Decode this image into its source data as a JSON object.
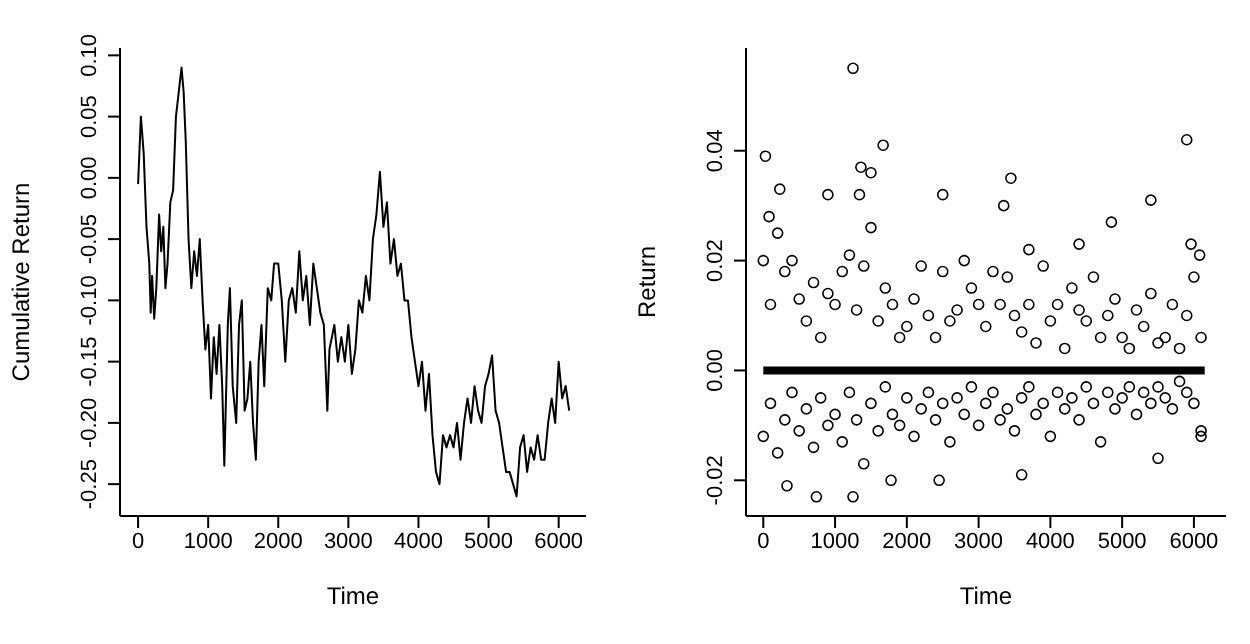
{
  "chart_data": [
    {
      "type": "line",
      "xlabel": "Time",
      "ylabel": "Cumulative Return",
      "xlim": [
        -258,
        6390
      ],
      "ylim": [
        -0.276,
        0.106
      ],
      "xticks": [
        0,
        1000,
        2000,
        3000,
        4000,
        5000,
        6000
      ],
      "yticks": [
        {
          "value": -0.25,
          "label": "-0.25"
        },
        {
          "value": -0.2,
          "label": "-0.20"
        },
        {
          "value": -0.15,
          "label": "-0.15"
        },
        {
          "value": -0.1,
          "label": "-0.10"
        },
        {
          "value": -0.05,
          "label": "-0.05"
        },
        {
          "value": 0,
          "label": "0.00"
        },
        {
          "value": 0.05,
          "label": "0.05"
        },
        {
          "value": 0.1,
          "label": "0.10"
        }
      ],
      "grid": false,
      "legend": false,
      "marker": "none",
      "series": [
        {
          "color": "#000000",
          "x": [
            0,
            40,
            80,
            120,
            160,
            180,
            200,
            230,
            260,
            300,
            330,
            360,
            390,
            420,
            460,
            500,
            540,
            580,
            620,
            650,
            680,
            720,
            760,
            800,
            840,
            880,
            920,
            960,
            1000,
            1040,
            1080,
            1120,
            1160,
            1200,
            1230,
            1280,
            1310,
            1350,
            1400,
            1440,
            1480,
            1520,
            1560,
            1600,
            1640,
            1680,
            1720,
            1760,
            1800,
            1850,
            1900,
            1940,
            2000,
            2050,
            2100,
            2150,
            2200,
            2250,
            2300,
            2350,
            2400,
            2450,
            2500,
            2550,
            2600,
            2650,
            2700,
            2730,
            2800,
            2850,
            2900,
            2950,
            3000,
            3050,
            3100,
            3150,
            3200,
            3250,
            3300,
            3350,
            3400,
            3450,
            3500,
            3550,
            3600,
            3650,
            3700,
            3750,
            3800,
            3850,
            3900,
            3950,
            4000,
            4050,
            4100,
            4150,
            4200,
            4250,
            4300,
            4350,
            4400,
            4450,
            4500,
            4550,
            4600,
            4650,
            4700,
            4750,
            4800,
            4850,
            4900,
            4950,
            5000,
            5050,
            5100,
            5150,
            5200,
            5250,
            5300,
            5350,
            5400,
            5450,
            5500,
            5550,
            5600,
            5650,
            5700,
            5750,
            5800,
            5850,
            5900,
            5950,
            6000,
            6050,
            6100,
            6150
          ],
          "values": [
            -0.005,
            0.05,
            0.02,
            -0.04,
            -0.07,
            -0.11,
            -0.08,
            -0.115,
            -0.09,
            -0.03,
            -0.06,
            -0.04,
            -0.09,
            -0.07,
            -0.02,
            -0.01,
            0.05,
            0.07,
            0.09,
            0.07,
            0.03,
            -0.05,
            -0.09,
            -0.06,
            -0.08,
            -0.05,
            -0.1,
            -0.14,
            -0.12,
            -0.18,
            -0.13,
            -0.16,
            -0.12,
            -0.17,
            -0.235,
            -0.12,
            -0.09,
            -0.17,
            -0.2,
            -0.12,
            -0.1,
            -0.19,
            -0.18,
            -0.15,
            -0.2,
            -0.23,
            -0.15,
            -0.12,
            -0.17,
            -0.09,
            -0.1,
            -0.07,
            -0.07,
            -0.1,
            -0.15,
            -0.1,
            -0.09,
            -0.11,
            -0.06,
            -0.1,
            -0.08,
            -0.12,
            -0.07,
            -0.09,
            -0.11,
            -0.12,
            -0.19,
            -0.14,
            -0.12,
            -0.15,
            -0.13,
            -0.15,
            -0.12,
            -0.16,
            -0.14,
            -0.1,
            -0.11,
            -0.08,
            -0.1,
            -0.05,
            -0.03,
            0.005,
            -0.04,
            -0.02,
            -0.07,
            -0.05,
            -0.08,
            -0.07,
            -0.1,
            -0.1,
            -0.13,
            -0.15,
            -0.17,
            -0.15,
            -0.19,
            -0.16,
            -0.21,
            -0.24,
            -0.25,
            -0.21,
            -0.22,
            -0.21,
            -0.22,
            -0.2,
            -0.23,
            -0.2,
            -0.18,
            -0.2,
            -0.17,
            -0.19,
            -0.2,
            -0.17,
            -0.16,
            -0.145,
            -0.19,
            -0.2,
            -0.22,
            -0.24,
            -0.24,
            -0.25,
            -0.26,
            -0.22,
            -0.21,
            -0.24,
            -0.22,
            -0.23,
            -0.21,
            -0.23,
            -0.23,
            -0.2,
            -0.18,
            -0.2,
            -0.15,
            -0.18,
            -0.17,
            -0.19
          ]
        }
      ]
    },
    {
      "type": "scatter",
      "xlabel": "Time",
      "ylabel": "Return",
      "xlim": [
        -241,
        6447
      ],
      "ylim": [
        -0.0265,
        0.0587
      ],
      "xticks": [
        0,
        1000,
        2000,
        3000,
        4000,
        5000,
        6000
      ],
      "yticks": [
        {
          "value": -0.02,
          "label": "-0.02"
        },
        {
          "value": 0,
          "label": "0.00"
        },
        {
          "value": 0.02,
          "label": "0.02"
        },
        {
          "value": 0.04,
          "label": "0.04"
        }
      ],
      "grid": false,
      "legend": false,
      "marker": "circle",
      "series": [
        {
          "color": "#000000",
          "x": [
            0,
            100,
            200,
            300,
            400,
            500,
            600,
            700,
            800,
            900,
            1000,
            1100,
            1200,
            1300,
            1400,
            1500,
            1600,
            1700,
            1800,
            1900,
            2000,
            2100,
            2200,
            2300,
            2400,
            2500,
            2600,
            2700,
            2800,
            2900,
            3000,
            3100,
            3200,
            3300,
            3400,
            3500,
            3600,
            3700,
            3800,
            3900,
            4000,
            4100,
            4200,
            4300,
            4400,
            4500,
            4600,
            4700,
            4800,
            4900,
            5000,
            5100,
            5200,
            5300,
            5400,
            5500,
            5600,
            5700,
            5800,
            5900,
            6000,
            6100,
            0,
            100,
            200,
            300,
            400,
            500,
            600,
            700,
            800,
            900,
            1000,
            1100,
            1200,
            1300,
            1400,
            1500,
            1600,
            1700,
            1800,
            1900,
            2000,
            2100,
            2200,
            2300,
            2400,
            2500,
            2600,
            2700,
            2800,
            2900,
            3000,
            3100,
            3200,
            3300,
            3400,
            3500,
            3600,
            3700,
            3800,
            3900,
            4000,
            4100,
            4200,
            4300,
            4400,
            4500,
            4600,
            4700,
            4800,
            4900,
            5000,
            5100,
            5200,
            5300,
            5400,
            5500,
            5600,
            5700,
            5800,
            5900,
            6000,
            6100,
            30,
            80,
            230,
            330,
            1250,
            1360,
            1500,
            1670,
            1340,
            900,
            1250,
            740,
            1780,
            2450,
            2500,
            3350,
            3450,
            3700,
            3600,
            4400,
            4850,
            5400,
            5500,
            5900,
            5960,
            6080,
            6100
          ],
          "values": [
            0.02,
            0.012,
            0.025,
            0.018,
            0.02,
            0.013,
            0.009,
            0.016,
            0.006,
            0.014,
            0.012,
            0.018,
            0.021,
            0.011,
            0.019,
            0.026,
            0.009,
            0.015,
            0.012,
            0.006,
            0.008,
            0.013,
            0.019,
            0.01,
            0.006,
            0.018,
            0.009,
            0.011,
            0.02,
            0.015,
            0.012,
            0.008,
            0.018,
            0.012,
            0.017,
            0.01,
            0.007,
            0.012,
            0.005,
            0.019,
            0.009,
            0.012,
            0.004,
            0.015,
            0.011,
            0.009,
            0.017,
            0.006,
            0.01,
            0.013,
            0.006,
            0.004,
            0.011,
            0.008,
            0.014,
            0.005,
            0.006,
            0.012,
            0.004,
            0.01,
            0.017,
            0.006,
            -0.012,
            -0.006,
            -0.015,
            -0.009,
            -0.004,
            -0.011,
            -0.007,
            -0.014,
            -0.005,
            -0.01,
            -0.008,
            -0.013,
            -0.004,
            -0.009,
            -0.017,
            -0.006,
            -0.011,
            -0.003,
            -0.008,
            -0.01,
            -0.005,
            -0.012,
            -0.007,
            -0.004,
            -0.009,
            -0.006,
            -0.013,
            -0.005,
            -0.008,
            -0.003,
            -0.01,
            -0.006,
            -0.004,
            -0.009,
            -0.007,
            -0.011,
            -0.005,
            -0.003,
            -0.008,
            -0.006,
            -0.012,
            -0.004,
            -0.007,
            -0.005,
            -0.009,
            -0.003,
            -0.006,
            -0.013,
            -0.004,
            -0.007,
            -0.005,
            -0.003,
            -0.008,
            -0.004,
            -0.006,
            -0.003,
            -0.005,
            -0.007,
            -0.002,
            -0.004,
            -0.006,
            -0.011,
            0.039,
            0.028,
            0.033,
            -0.021,
            0.055,
            0.037,
            0.036,
            0.041,
            0.032,
            0.032,
            -0.023,
            -0.023,
            -0.02,
            -0.02,
            0.032,
            0.03,
            0.035,
            0.022,
            -0.019,
            0.023,
            0.027,
            0.031,
            -0.016,
            0.042,
            0.023,
            0.021,
            -0.012
          ]
        },
        {
          "type": "line",
          "marker": "none",
          "color": "#000000",
          "x": [
            0,
            6150
          ],
          "values": [
            0,
            0
          ]
        }
      ]
    }
  ]
}
